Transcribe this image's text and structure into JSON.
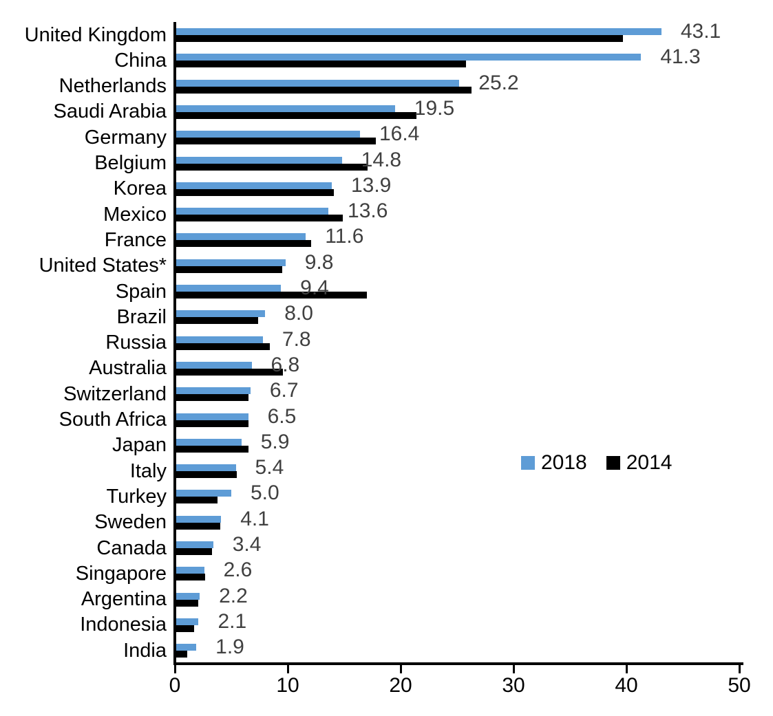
{
  "chart_data": {
    "type": "bar",
    "orientation": "horizontal",
    "title": "",
    "xlabel": "",
    "ylabel": "",
    "xlim": [
      0,
      50
    ],
    "x_ticks": [
      "0",
      "10",
      "20",
      "30",
      "40",
      "50"
    ],
    "grid": false,
    "legend_position": "middle-right",
    "data_labels_series": "2018",
    "categories": [
      "United Kingdom",
      "China",
      "Netherlands",
      "Saudi Arabia",
      "Germany",
      "Belgium",
      "Korea",
      "Mexico",
      "France",
      "United States*",
      "Spain",
      "Brazil",
      "Russia",
      "Australia",
      "Switzerland",
      "South Africa",
      "Japan",
      "Italy",
      "Turkey",
      "Sweden",
      "Canada",
      "Singapore",
      "Argentina",
      "Indonesia",
      "India"
    ],
    "series": [
      {
        "name": "2018",
        "color": "#5E9CD6",
        "values": [
          43.1,
          41.3,
          25.2,
          19.5,
          16.4,
          14.8,
          13.9,
          13.6,
          11.6,
          9.8,
          9.4,
          8.0,
          7.8,
          6.8,
          6.7,
          6.5,
          5.9,
          5.4,
          5.0,
          4.1,
          3.4,
          2.6,
          2.2,
          2.1,
          1.9
        ],
        "labels": [
          "43.1",
          "41.3",
          "25.2",
          "19.5",
          "16.4",
          "14.8",
          "13.9",
          "13.6",
          "11.6",
          "9.8",
          "9.4",
          "8.0",
          "7.8",
          "6.8",
          "6.7",
          "6.5",
          "5.9",
          "5.4",
          "5.0",
          "4.1",
          "3.4",
          "2.6",
          "2.2",
          "2.1",
          "1.9"
        ]
      },
      {
        "name": "2014",
        "color": "#000000",
        "values": [
          39.7,
          25.8,
          26.3,
          21.4,
          17.8,
          17.1,
          14.1,
          14.9,
          12.1,
          9.5,
          17.0,
          7.4,
          8.4,
          9.6,
          6.5,
          6.5,
          6.5,
          5.5,
          3.8,
          4.0,
          3.3,
          2.7,
          2.1,
          1.7,
          1.1
        ],
        "labels": []
      }
    ]
  },
  "colors": {
    "background": "#ffffff",
    "axis": "#000000",
    "value_label": "#404040",
    "category_label": "#000000"
  },
  "legend": {
    "entries": [
      {
        "label": "2018",
        "color": "#5E9CD6"
      },
      {
        "label": "2014",
        "color": "#000000"
      }
    ]
  }
}
